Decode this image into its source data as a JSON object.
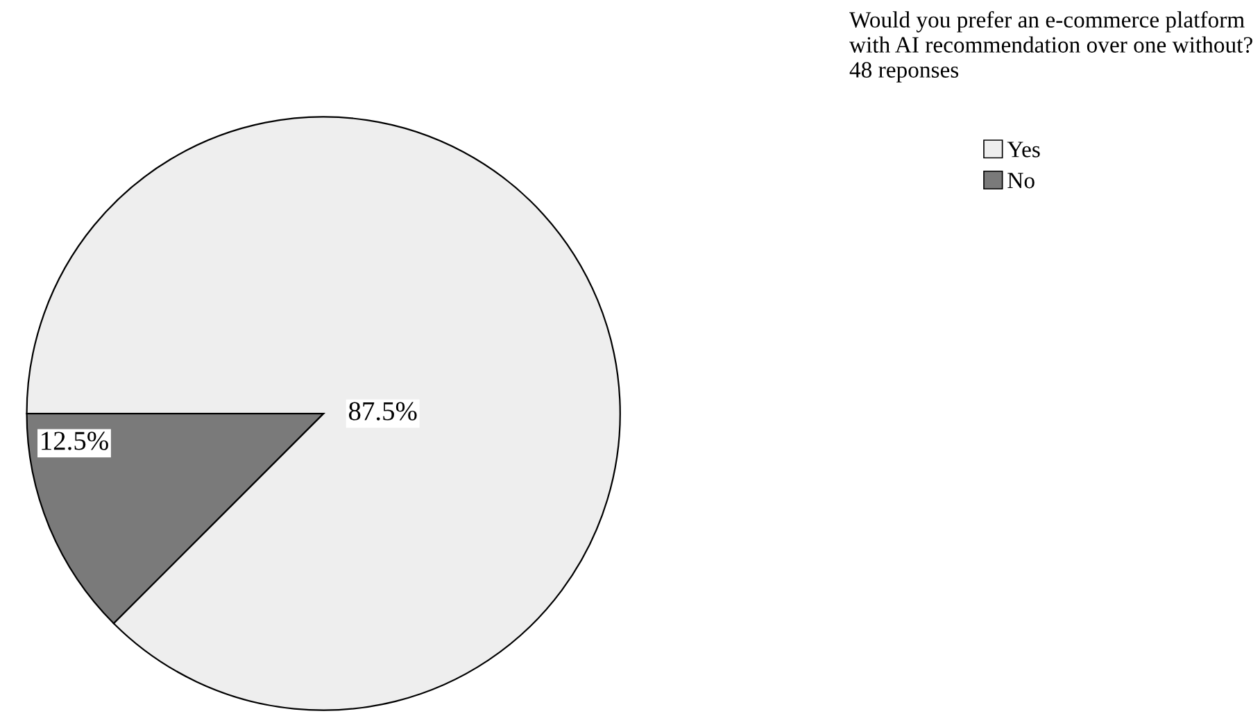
{
  "chart_data": {
    "type": "pie",
    "title": "Would you prefer an e-commerce platform\nwith AI recommendation over one without?\n48 reponses",
    "categories": [
      "Yes",
      "No"
    ],
    "values": [
      87.5,
      12.5
    ],
    "colors": [
      "#eeeeee",
      "#7a7a7a"
    ],
    "value_labels": [
      "87.5%",
      "12.5%"
    ],
    "legend": "right"
  }
}
